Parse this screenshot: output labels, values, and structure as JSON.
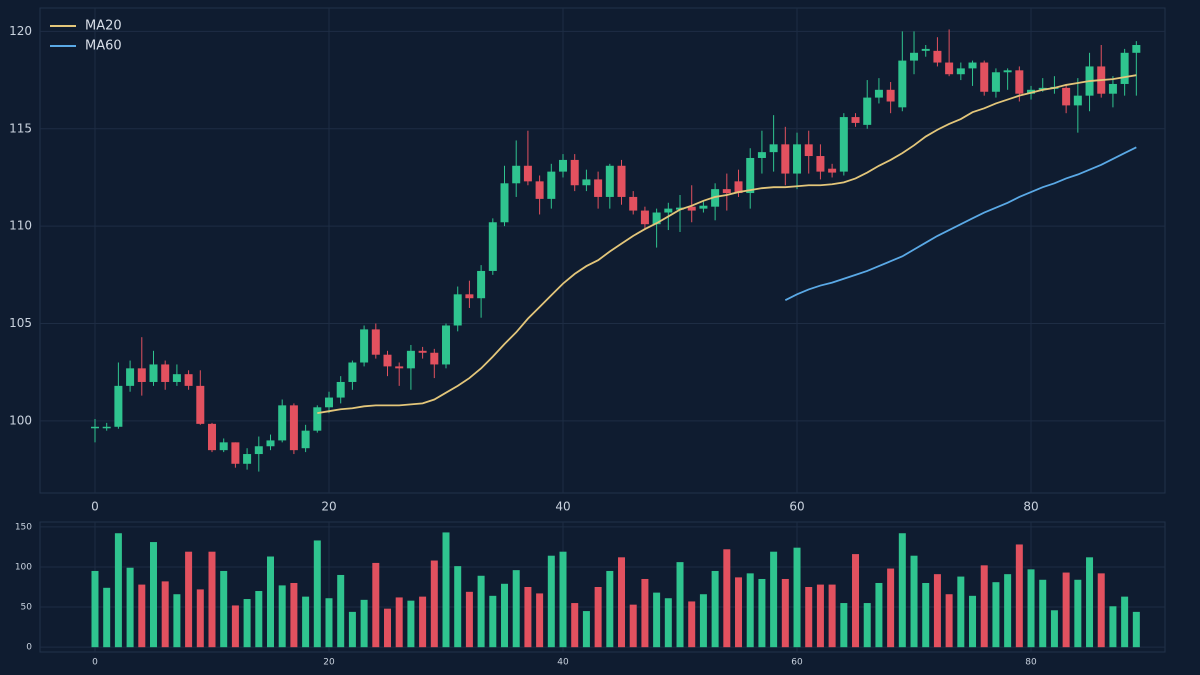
{
  "chart_data": [
    {
      "type": "candlestick",
      "x": [
        0,
        1,
        2,
        3,
        4,
        5,
        6,
        7,
        8,
        9,
        10,
        11,
        12,
        13,
        14,
        15,
        16,
        17,
        18,
        19,
        20,
        21,
        22,
        23,
        24,
        25,
        26,
        27,
        28,
        29,
        30,
        31,
        32,
        33,
        34,
        35,
        36,
        37,
        38,
        39,
        40,
        41,
        42,
        43,
        44,
        45,
        46,
        47,
        48,
        49,
        50,
        51,
        52,
        53,
        54,
        55,
        56,
        57,
        58,
        59,
        60,
        61,
        62,
        63,
        64,
        65,
        66,
        67,
        68,
        69,
        70,
        71,
        72,
        73,
        74,
        75,
        76,
        77,
        78,
        79,
        80,
        81,
        82,
        83,
        84,
        85,
        86,
        87,
        88,
        89
      ],
      "open": [
        99.65,
        99.65,
        99.7,
        101.8,
        102.7,
        102.0,
        102.9,
        102.0,
        102.4,
        101.8,
        99.85,
        98.5,
        98.9,
        97.8,
        98.3,
        98.7,
        99.0,
        100.8,
        98.6,
        99.5,
        100.7,
        101.2,
        102.0,
        103.0,
        104.7,
        103.4,
        102.8,
        102.7,
        103.6,
        103.5,
        102.9,
        104.9,
        106.5,
        106.3,
        107.7,
        110.2,
        112.2,
        113.1,
        112.3,
        111.4,
        112.8,
        113.4,
        112.1,
        112.4,
        111.5,
        113.1,
        111.5,
        110.8,
        110.1,
        110.7,
        110.85,
        111.0,
        110.9,
        111.0,
        111.9,
        112.3,
        111.7,
        113.5,
        113.8,
        114.2,
        112.7,
        114.2,
        113.6,
        112.95,
        112.8,
        115.6,
        115.2,
        116.6,
        117.0,
        116.1,
        118.5,
        119.0,
        119.0,
        118.4,
        117.8,
        118.1,
        118.4,
        116.9,
        117.9,
        118.0,
        116.8,
        117.0,
        117.05,
        117.1,
        116.2,
        116.7,
        118.2,
        116.8,
        117.3,
        118.9
      ],
      "high": [
        100.1,
        99.9,
        103.0,
        103.1,
        104.3,
        103.6,
        103.1,
        102.9,
        102.6,
        102.6,
        99.9,
        99.1,
        98.9,
        98.6,
        99.2,
        99.3,
        101.1,
        100.9,
        99.8,
        100.8,
        101.5,
        102.3,
        103.1,
        104.9,
        105.0,
        103.6,
        103.0,
        103.9,
        103.8,
        103.7,
        105.0,
        106.9,
        107.2,
        108.0,
        110.4,
        113.1,
        114.4,
        114.9,
        112.6,
        113.2,
        113.7,
        113.7,
        112.9,
        112.8,
        113.2,
        113.4,
        111.8,
        111.0,
        110.9,
        111.2,
        111.6,
        112.1,
        111.3,
        112.2,
        112.7,
        112.9,
        114.0,
        114.9,
        115.7,
        115.1,
        114.8,
        114.9,
        114.2,
        113.2,
        115.8,
        115.8,
        117.5,
        117.6,
        117.4,
        120.0,
        120.0,
        119.3,
        119.7,
        120.1,
        118.4,
        118.5,
        118.5,
        118.1,
        118.1,
        118.2,
        117.2,
        117.6,
        117.7,
        117.3,
        117.6,
        118.9,
        119.3,
        117.7,
        119.1,
        119.5
      ],
      "low": [
        98.9,
        99.5,
        99.6,
        101.5,
        101.3,
        101.8,
        101.6,
        101.8,
        101.6,
        99.8,
        98.4,
        98.4,
        97.6,
        97.5,
        97.4,
        98.5,
        98.9,
        98.3,
        98.4,
        99.4,
        100.4,
        100.9,
        101.6,
        102.8,
        103.2,
        102.3,
        101.8,
        101.6,
        103.2,
        102.2,
        102.7,
        104.6,
        105.8,
        105.3,
        107.5,
        110.0,
        111.5,
        112.1,
        110.6,
        110.9,
        112.5,
        111.8,
        111.8,
        110.9,
        110.9,
        111.1,
        110.6,
        109.8,
        108.9,
        109.8,
        109.7,
        110.2,
        110.7,
        110.3,
        110.8,
        111.5,
        110.9,
        112.7,
        112.8,
        112.1,
        111.9,
        112.7,
        112.4,
        112.5,
        112.6,
        115.1,
        115.0,
        116.3,
        115.8,
        115.9,
        117.8,
        118.7,
        118.2,
        117.7,
        117.5,
        117.2,
        116.7,
        116.6,
        117.0,
        116.4,
        116.5,
        116.9,
        116.8,
        115.8,
        114.8,
        115.9,
        116.6,
        116.1,
        116.7,
        116.7
      ],
      "close": [
        99.7,
        99.7,
        101.8,
        102.7,
        102.0,
        102.9,
        102.0,
        102.4,
        101.8,
        99.85,
        98.5,
        98.9,
        97.8,
        98.3,
        98.7,
        99.0,
        100.8,
        98.5,
        99.5,
        100.7,
        101.2,
        102.0,
        103.0,
        104.7,
        103.4,
        102.8,
        102.7,
        103.6,
        103.5,
        102.9,
        104.9,
        106.5,
        106.3,
        107.7,
        110.2,
        112.2,
        113.1,
        112.3,
        111.4,
        112.8,
        113.4,
        112.1,
        112.4,
        111.5,
        113.1,
        111.5,
        110.8,
        110.1,
        110.7,
        110.9,
        110.95,
        110.8,
        111.05,
        111.9,
        111.7,
        111.7,
        113.5,
        113.8,
        114.2,
        112.7,
        114.2,
        113.6,
        112.8,
        112.75,
        115.6,
        115.3,
        116.6,
        117.0,
        116.4,
        118.5,
        118.9,
        119.1,
        118.4,
        117.8,
        118.1,
        118.4,
        116.9,
        117.9,
        118.0,
        116.8,
        117.0,
        117.1,
        117.15,
        116.2,
        116.7,
        118.2,
        116.8,
        117.3,
        118.9,
        119.3
      ],
      "series": [
        {
          "name": "MA20",
          "color": "#e3c67a",
          "values": [
            null,
            null,
            null,
            null,
            null,
            null,
            null,
            null,
            null,
            null,
            null,
            null,
            null,
            null,
            null,
            null,
            null,
            null,
            null,
            100.4,
            100.5,
            100.6,
            100.65,
            100.75,
            100.8,
            100.8,
            100.8,
            100.85,
            100.9,
            101.1,
            101.45,
            101.8,
            102.2,
            102.7,
            103.3,
            103.95,
            104.55,
            105.25,
            105.85,
            106.45,
            107.05,
            107.55,
            107.95,
            108.25,
            108.7,
            109.1,
            109.5,
            109.85,
            110.15,
            110.5,
            110.85,
            111.05,
            111.3,
            111.5,
            111.6,
            111.75,
            111.85,
            111.95,
            112.0,
            112.0,
            112.05,
            112.1,
            112.1,
            112.15,
            112.25,
            112.45,
            112.75,
            113.1,
            113.4,
            113.75,
            114.15,
            114.6,
            114.95,
            115.25,
            115.5,
            115.85,
            116.05,
            116.3,
            116.5,
            116.7,
            116.85,
            117.0,
            117.1,
            117.25,
            117.35,
            117.45,
            117.5,
            117.55,
            117.65,
            117.75
          ]
        },
        {
          "name": "MA60",
          "color": "#5aa9e6",
          "values": [
            null,
            null,
            null,
            null,
            null,
            null,
            null,
            null,
            null,
            null,
            null,
            null,
            null,
            null,
            null,
            null,
            null,
            null,
            null,
            null,
            null,
            null,
            null,
            null,
            null,
            null,
            null,
            null,
            null,
            null,
            null,
            null,
            null,
            null,
            null,
            null,
            null,
            null,
            null,
            null,
            null,
            null,
            null,
            null,
            null,
            null,
            null,
            null,
            null,
            null,
            null,
            null,
            null,
            null,
            null,
            null,
            null,
            null,
            null,
            106.2,
            106.5,
            106.75,
            106.95,
            107.1,
            107.3,
            107.5,
            107.7,
            107.95,
            108.2,
            108.45,
            108.8,
            109.15,
            109.5,
            109.8,
            110.1,
            110.4,
            110.7,
            110.95,
            111.2,
            111.5,
            111.75,
            112.0,
            112.2,
            112.45,
            112.65,
            112.9,
            113.15,
            113.45,
            113.75,
            114.05
          ]
        }
      ],
      "up_color": "#2fc48f",
      "down_color": "#e2515f",
      "xlim": [
        -4.7,
        91.45
      ],
      "ylim": [
        96.3,
        121.2
      ],
      "xticks": [
        0,
        20,
        40,
        60,
        80
      ],
      "yticks": [
        100,
        105,
        110,
        115,
        120
      ],
      "grid": true,
      "legend": "upper left"
    },
    {
      "type": "bar",
      "x": [
        0,
        1,
        2,
        3,
        4,
        5,
        6,
        7,
        8,
        9,
        10,
        11,
        12,
        13,
        14,
        15,
        16,
        17,
        18,
        19,
        20,
        21,
        22,
        23,
        24,
        25,
        26,
        27,
        28,
        29,
        30,
        31,
        32,
        33,
        34,
        35,
        36,
        37,
        38,
        39,
        40,
        41,
        42,
        43,
        44,
        45,
        46,
        47,
        48,
        49,
        50,
        51,
        52,
        53,
        54,
        55,
        56,
        57,
        58,
        59,
        60,
        61,
        62,
        63,
        64,
        65,
        66,
        67,
        68,
        69,
        70,
        71,
        72,
        73,
        74,
        75,
        76,
        77,
        78,
        79,
        80,
        81,
        82,
        83,
        84,
        85,
        86,
        87,
        88,
        89
      ],
      "values": [
        95,
        74,
        142,
        99,
        78,
        131,
        82,
        66,
        119,
        72,
        119,
        95,
        52,
        60,
        70,
        113,
        77,
        80,
        63,
        133,
        61,
        90,
        44,
        59,
        105,
        48,
        62,
        58,
        63,
        108,
        143,
        101,
        69,
        89,
        64,
        79,
        96,
        75,
        67,
        114,
        119,
        55,
        45,
        75,
        95,
        112,
        53,
        85,
        68,
        61,
        106,
        57,
        66,
        95,
        122,
        87,
        92,
        85,
        119,
        85,
        124,
        75,
        78,
        78,
        55,
        116,
        55,
        80,
        98,
        142,
        114,
        80,
        91,
        66,
        88,
        64,
        102,
        81,
        91,
        128,
        97,
        84,
        46,
        93,
        84,
        112,
        92,
        51,
        63,
        44
      ],
      "up_color": "#2fc48f",
      "down_color": "#e2515f",
      "xlim": [
        -4.7,
        91.45
      ],
      "ylim": [
        -6,
        156
      ],
      "xticks": [
        0,
        20,
        40,
        60,
        80
      ],
      "yticks": [
        0,
        50,
        100,
        150
      ],
      "grid": true
    }
  ]
}
